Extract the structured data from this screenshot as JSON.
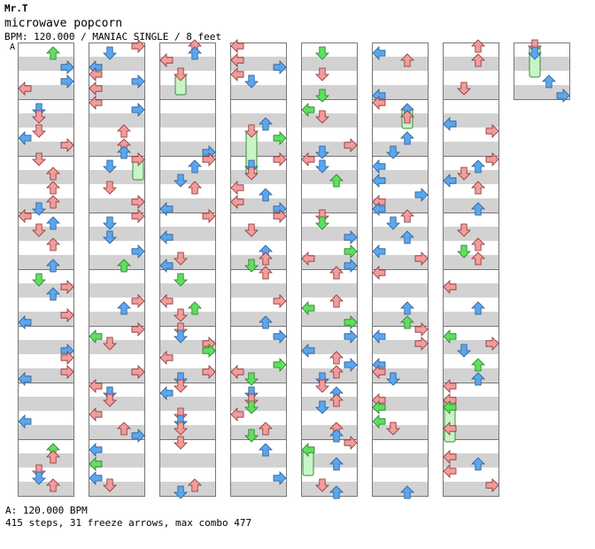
{
  "header": {
    "artist": "Mr.T",
    "title": "microwave popcorn",
    "info": "BPM: 120.000 / MANIAC SINGLE / 8 feet",
    "segment_marker": "A"
  },
  "footer": {
    "bpm_line": "A: 120.000 BPM",
    "stats": "415 steps, 31 freeze arrows, max combo 477"
  },
  "chart_data": {
    "type": "step-chart",
    "bpm": 120,
    "difficulty": "MANIAC SINGLE",
    "feet": 8,
    "steps": 415,
    "freeze_arrows": 31,
    "max_combo": 477,
    "columns": 8,
    "measures_per_column": 8,
    "lanes": [
      "left",
      "down",
      "up",
      "right"
    ],
    "colors": {
      "quarter": "#f29c9c",
      "eighth": "#59a7f0",
      "sixteenth": "#5ee05e",
      "freeze": "#c8f5c8",
      "stripe": "#d2d2d2",
      "border": "#777777"
    },
    "icons": [
      "left-arrow-icon",
      "down-arrow-icon",
      "up-arrow-icon",
      "right-arrow-icon",
      "freeze-arrow-icon"
    ]
  }
}
